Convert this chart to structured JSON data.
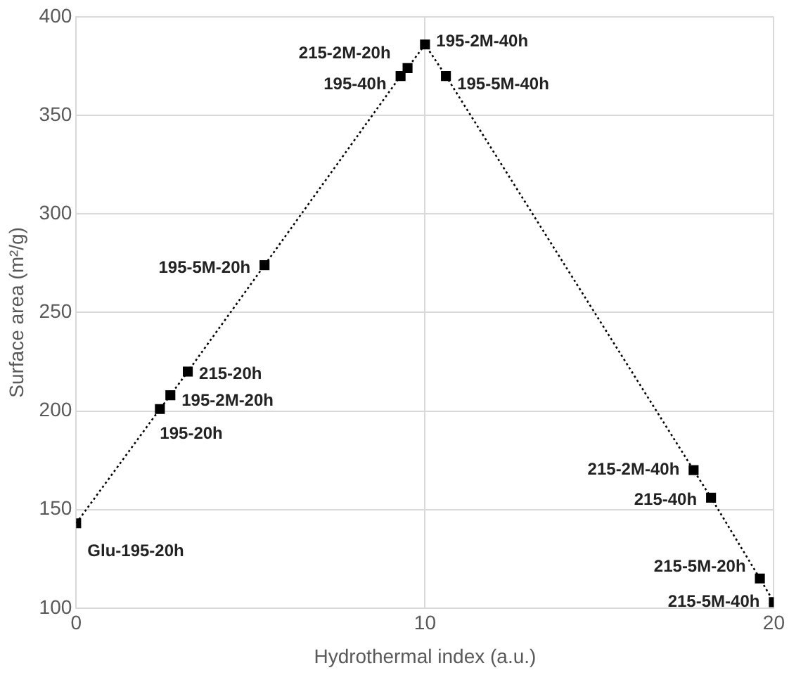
{
  "chart_data": {
    "type": "line",
    "xlabel": "Hydrothermal index (a.u.)",
    "ylabel": "Surface area (m²/g)",
    "x": [
      0,
      2.4,
      2.7,
      3.2,
      5.4,
      9.3,
      9.5,
      10,
      10.6,
      17.7,
      18.2,
      19.6,
      20
    ],
    "series": [
      {
        "color": "#000000",
        "values": [
          143,
          201,
          208,
          220,
          274,
          370,
          374,
          386,
          370,
          170,
          156,
          115,
          103
        ]
      }
    ],
    "xlim": [
      0,
      20
    ],
    "xticks": [
      0,
      10,
      20
    ],
    "ylim": [
      100,
      400
    ],
    "yticks": [
      100,
      150,
      200,
      250,
      300,
      350,
      400
    ],
    "grid": true,
    "legend": false,
    "marker": "square",
    "line_style": "dotted",
    "annotations": [
      {
        "text": "Glu-195-20h",
        "x": 0,
        "y": 143
      },
      {
        "text": "195-20h",
        "x": 2.4,
        "y": 201
      },
      {
        "text": "195-2M-20h",
        "x": 2.7,
        "y": 208
      },
      {
        "text": "215-20h",
        "x": 3.2,
        "y": 220
      },
      {
        "text": "195-5M-20h",
        "x": 5.4,
        "y": 274
      },
      {
        "text": "195-40h",
        "x": 9.3,
        "y": 370
      },
      {
        "text": "215-2M-20h",
        "x": 9.5,
        "y": 374
      },
      {
        "text": "195-2M-40h",
        "x": 10,
        "y": 386
      },
      {
        "text": "195-5M-40h",
        "x": 10.6,
        "y": 370
      },
      {
        "text": "215-2M-40h",
        "x": 17.7,
        "y": 170
      },
      {
        "text": "215-40h",
        "x": 18.2,
        "y": 156
      },
      {
        "text": "215-5M-20h",
        "x": 19.6,
        "y": 115
      },
      {
        "text": "215-5M-40h",
        "x": 20,
        "y": 103
      }
    ]
  }
}
